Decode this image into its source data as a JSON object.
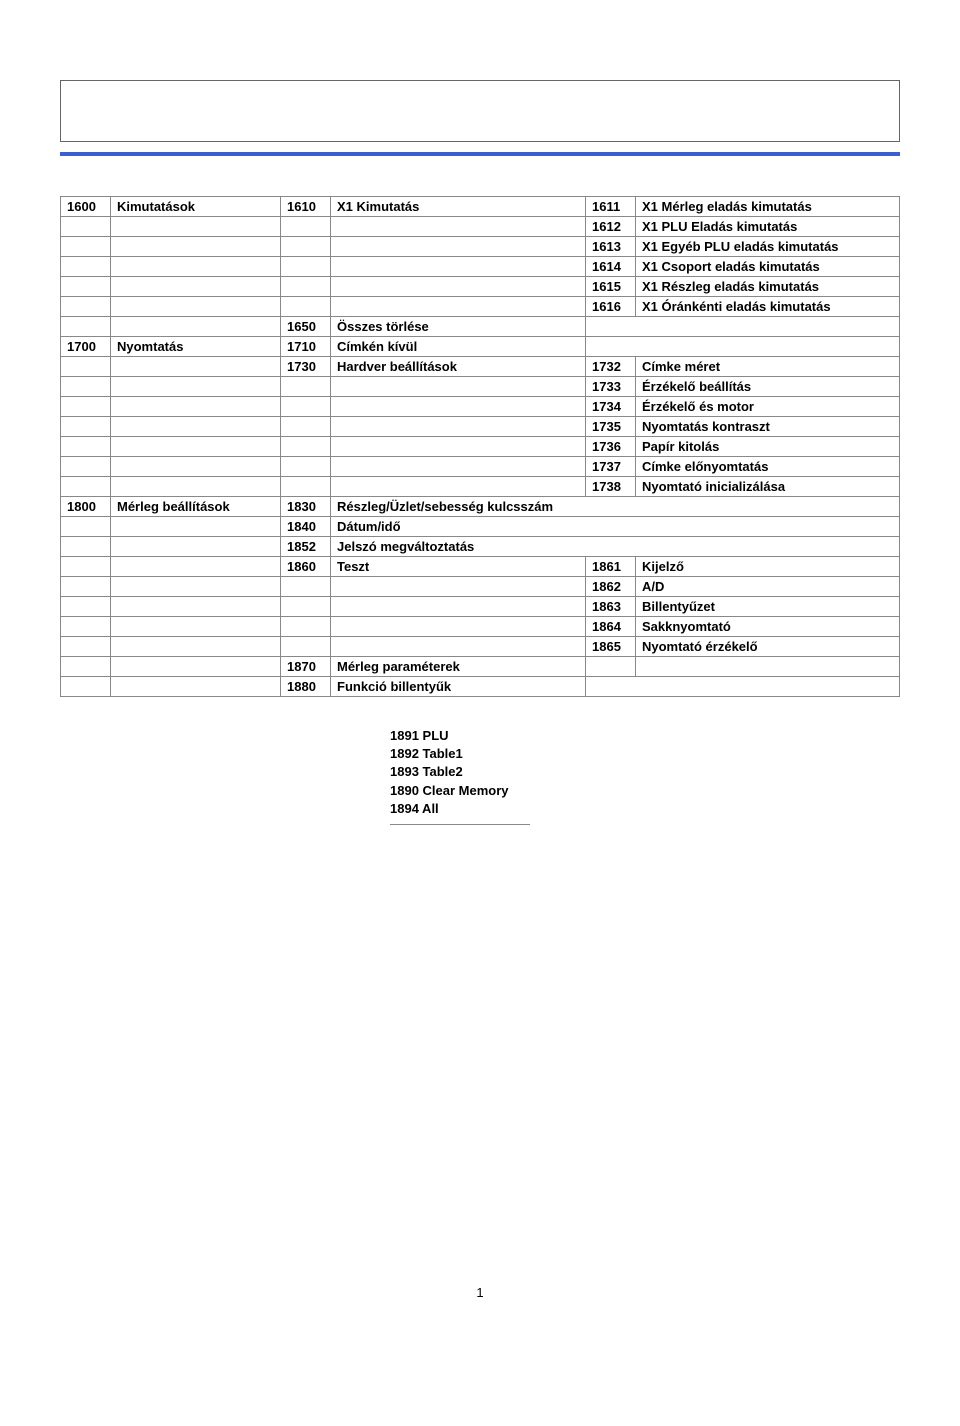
{
  "rows": [
    {
      "a": "1600",
      "b": "Kimutatások",
      "c": "1610",
      "d": "X1 Kimutatás",
      "e": "1611",
      "f": "X1 Mérleg eladás kimutatás"
    },
    {
      "a": "",
      "b": "",
      "c": "",
      "d": "",
      "e": "1612",
      "f": "X1 PLU Eladás kimutatás"
    },
    {
      "a": "",
      "b": "",
      "c": "",
      "d": "",
      "e": "1613",
      "f": "X1 Egyéb PLU eladás kimutatás"
    },
    {
      "a": "",
      "b": "",
      "c": "",
      "d": "",
      "e": "1614",
      "f": "X1 Csoport eladás kimutatás"
    },
    {
      "a": "",
      "b": "",
      "c": "",
      "d": "",
      "e": "1615",
      "f": "X1 Részleg eladás kimutatás"
    },
    {
      "a": "",
      "b": "",
      "c": "",
      "d": "",
      "e": "1616",
      "f": "X1 Óránkénti eladás kimutatás"
    },
    {
      "a": "",
      "b": "",
      "c": "1650",
      "d": "Összes törlése",
      "e": "",
      "f": "",
      "efmerge": true
    },
    {
      "a": "1700",
      "b": "Nyomtatás",
      "c": "1710",
      "d": "Címkén kívül",
      "e": "",
      "f": "",
      "efmerge": true
    },
    {
      "a": "",
      "b": "",
      "c": "1730",
      "d": "Hardver beállítások",
      "e": "1732",
      "f": "Címke méret"
    },
    {
      "a": "",
      "b": "",
      "c": "",
      "d": "",
      "e": "1733",
      "f": "Érzékelő beállítás"
    },
    {
      "a": "",
      "b": "",
      "c": "",
      "d": "",
      "e": "1734",
      "f": "Érzékelő és motor"
    },
    {
      "a": "",
      "b": "",
      "c": "",
      "d": "",
      "e": "1735",
      "f": "Nyomtatás kontraszt"
    },
    {
      "a": "",
      "b": "",
      "c": "",
      "d": "",
      "e": "1736",
      "f": "Papír kitolás"
    },
    {
      "a": "",
      "b": "",
      "c": "",
      "d": "",
      "e": "1737",
      "f": "Címke előnyomtatás"
    },
    {
      "a": "",
      "b": "",
      "c": "",
      "d": "",
      "e": "1738",
      "f": "Nyomtató inicializálása"
    },
    {
      "a": "1800",
      "b": "Mérleg beállítások",
      "c": "1830",
      "d": "Részleg/Üzlet/sebesség kulcsszám",
      "e": "",
      "f": "",
      "defmerge": true
    },
    {
      "a": "",
      "b": "",
      "c": "1840",
      "d": "Dátum/idő",
      "e": "",
      "f": "",
      "defmerge": true
    },
    {
      "a": "",
      "b": "",
      "c": "1852",
      "d": "Jelszó megváltoztatás",
      "e": "",
      "f": "",
      "defmerge": true
    },
    {
      "a": "",
      "b": "",
      "c": "1860",
      "d": "Teszt",
      "e": "1861",
      "f": "Kijelző"
    },
    {
      "a": "",
      "b": "",
      "c": "",
      "d": "",
      "e": "1862",
      "f": "A/D"
    },
    {
      "a": "",
      "b": "",
      "c": "",
      "d": "",
      "e": "1863",
      "f": "Billentyűzet"
    },
    {
      "a": "",
      "b": "",
      "c": "",
      "d": "",
      "e": "1864",
      "f": "Sakknyomtató"
    },
    {
      "a": "",
      "b": "",
      "c": "",
      "d": "",
      "e": "1865",
      "f": "Nyomtató érzékelő"
    },
    {
      "a": "",
      "b": "",
      "c": "1870",
      "d": "Mérleg paraméterek",
      "e": "",
      "f": ""
    },
    {
      "a": "",
      "b": "",
      "c": "1880",
      "d": "Funkció billentyűk",
      "e": "",
      "f": "",
      "efmerge": true
    }
  ],
  "below": [
    "1891 PLU",
    "1892 Table1",
    "1893 Table2",
    "1890 Clear Memory",
    "1894 All"
  ],
  "pagenum": "1"
}
